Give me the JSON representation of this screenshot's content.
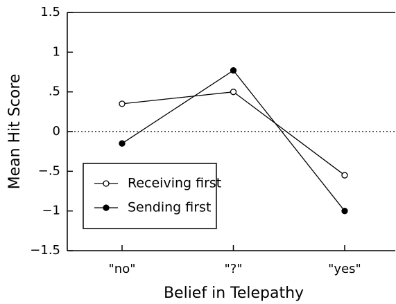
{
  "chart_data": {
    "type": "line",
    "x_label": "Belief in Telepathy",
    "y_label": "Mean Hit Score",
    "categories": [
      "\"no\"",
      "\"?\"",
      "\"yes\""
    ],
    "series": [
      {
        "name": "Receiving first",
        "color": "#000000",
        "marker": "open",
        "values": [
          0.35,
          0.5,
          -0.55
        ]
      },
      {
        "name": "Sending first",
        "color": "#000000",
        "marker": "filled",
        "values": [
          -0.15,
          0.77,
          -1.0
        ]
      }
    ],
    "ylim": [
      -1.5,
      1.5
    ],
    "yticks": [
      {
        "value": -1.5,
        "label": "−1.5"
      },
      {
        "value": -1,
        "label": "−1"
      },
      {
        "value": -0.5,
        "label": "−.5"
      },
      0,
      {
        "value": 0.5,
        "label": ".5"
      },
      1,
      1.5
    ],
    "reference_line": 0,
    "legend": "lower left"
  }
}
